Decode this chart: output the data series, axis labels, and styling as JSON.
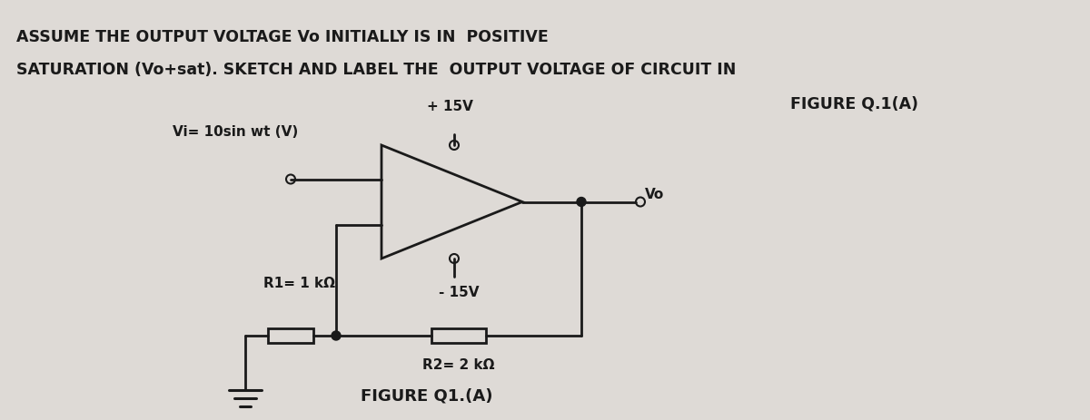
{
  "bg_color": "#dedad6",
  "line_color": "#1a1a1a",
  "title_line1": "ASSUME THE OUTPUT VOLTAGE Vo INITIALLY IS IN  POSITIVE",
  "title_line2": "SATURATION (Vo+sat). SKETCH AND LABEL THE  OUTPUT VOLTAGE OF CIRCUIT IN",
  "figure_ref": "FIGURE Q.1(A)",
  "figure_caption": "FIGURE Q1.(A)",
  "vi_label": "Vi= 10sin wt (V)",
  "vcc_label": "+ 15V",
  "vee_label": "- 15V",
  "vo_label": "Vo",
  "r1_label": "R1= 1 kΩ",
  "r2_label": "R2= 2 kΩ",
  "font_size_title": 13,
  "font_size_circuit": 11
}
